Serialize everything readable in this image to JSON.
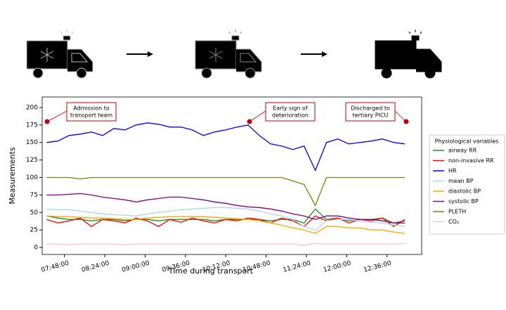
{
  "chart_data": {
    "type": "line",
    "xlabel": "Time during transport",
    "ylabel": "Measurements",
    "legend_title": "Physiological variables",
    "legend": "outside right",
    "annotations": [
      [
        "Admission to",
        "transport team"
      ],
      [
        "Early sign of",
        "deterioration"
      ],
      [
        "Discharged to",
        "tertiary PICU"
      ]
    ],
    "annotation_color": "#c00000",
    "xlim": [
      448,
      787
    ],
    "ylim": [
      -10,
      215
    ],
    "xticks": [
      {
        "value": 468,
        "label": "07:48:00"
      },
      {
        "value": 504,
        "label": "08:24:00"
      },
      {
        "value": 540,
        "label": "09:00:00"
      },
      {
        "value": 576,
        "label": "09:36:00"
      },
      {
        "value": 612,
        "label": "10:12:00"
      },
      {
        "value": 648,
        "label": "10:48:00"
      },
      {
        "value": 684,
        "label": "11:24:00"
      },
      {
        "value": 720,
        "label": "12:00:00"
      },
      {
        "value": 756,
        "label": "12:36:00"
      }
    ],
    "yticks": [
      0,
      25,
      50,
      75,
      100,
      125,
      150,
      175,
      200
    ],
    "x": [
      452,
      462,
      472,
      482,
      492,
      502,
      512,
      522,
      532,
      542,
      552,
      562,
      572,
      582,
      592,
      602,
      612,
      622,
      632,
      642,
      652,
      662,
      672,
      682,
      692,
      702,
      712,
      722,
      732,
      742,
      752,
      762,
      772
    ],
    "series": [
      {
        "name": "airway RR",
        "color": "#228b22",
        "values": [
          45,
          42,
          40,
          40,
          38,
          40,
          40,
          38,
          40,
          40,
          38,
          40,
          40,
          40,
          40,
          38,
          40,
          40,
          40,
          40,
          38,
          40,
          40,
          35,
          55,
          40,
          42,
          38,
          40,
          40,
          42,
          35,
          38
        ]
      },
      {
        "name": "non-invasive RR",
        "color": "#ff0000",
        "values": [
          40,
          35,
          38,
          42,
          30,
          40,
          38,
          35,
          42,
          38,
          30,
          40,
          36,
          42,
          38,
          35,
          40,
          38,
          42,
          40,
          35,
          42,
          38,
          30,
          45,
          38,
          42,
          35,
          40,
          38,
          42,
          30,
          40
        ]
      },
      {
        "name": "HR",
        "color": "#0000ff",
        "values": [
          150,
          152,
          160,
          162,
          165,
          160,
          170,
          168,
          175,
          178,
          176,
          172,
          172,
          168,
          160,
          165,
          168,
          172,
          175,
          160,
          148,
          145,
          140,
          145,
          110,
          150,
          155,
          148,
          150,
          152,
          155,
          150,
          148
        ]
      },
      {
        "name": "mean BP",
        "color": "#add8e6",
        "values": [
          55,
          54,
          54,
          52,
          50,
          48,
          47,
          46,
          45,
          48,
          50,
          52,
          54,
          55,
          56,
          57,
          57,
          56,
          55,
          52,
          48,
          45,
          40,
          30,
          25,
          38,
          40,
          40,
          38,
          36,
          35,
          32,
          30
        ]
      },
      {
        "name": "diastolic BP",
        "color": "#ffa500",
        "values": [
          45,
          44,
          44,
          43,
          42,
          42,
          41,
          40,
          40,
          42,
          43,
          44,
          44,
          44,
          44,
          43,
          42,
          41,
          40,
          38,
          35,
          32,
          28,
          25,
          20,
          30,
          30,
          28,
          28,
          25,
          25,
          22,
          20
        ]
      },
      {
        "name": "systolic BP",
        "color": "#800080",
        "values": [
          75,
          75,
          76,
          77,
          75,
          72,
          70,
          68,
          65,
          68,
          70,
          72,
          72,
          70,
          68,
          65,
          63,
          60,
          58,
          57,
          55,
          52,
          48,
          45,
          40,
          45,
          45,
          42,
          40,
          40,
          38,
          35,
          35
        ]
      },
      {
        "name": "PLETH",
        "color": "#808000",
        "values": [
          100,
          100,
          100,
          98,
          100,
          100,
          100,
          100,
          100,
          100,
          100,
          100,
          100,
          100,
          100,
          100,
          100,
          100,
          100,
          100,
          100,
          100,
          95,
          90,
          60,
          100,
          100,
          100,
          100,
          100,
          100,
          100,
          100
        ]
      },
      {
        "name": "CO₂",
        "color": "#ffc0cb",
        "values": [
          5,
          5,
          4,
          5,
          5,
          5,
          5,
          4,
          5,
          5,
          5,
          5,
          5,
          5,
          5,
          5,
          5,
          5,
          5,
          5,
          5,
          5,
          5,
          3,
          6,
          5,
          5,
          5,
          5,
          5,
          5,
          5,
          6
        ]
      }
    ]
  }
}
